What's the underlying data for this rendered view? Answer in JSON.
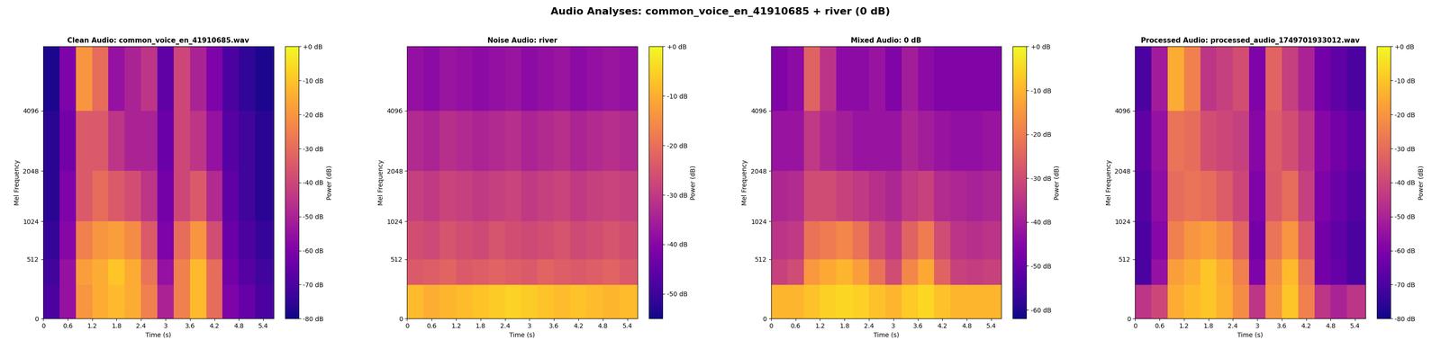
{
  "title": "Audio Analyses: common_voice_en_41910685 + river (0 dB)",
  "chart_data": [
    {
      "type": "heatmap",
      "title": "Clean Audio: common_voice_en_41910685.wav",
      "x_label": "Time (s)",
      "y_label": "Mel Frequency",
      "colorbar_label": "Power (dB)",
      "xlim": [
        0,
        5.65
      ],
      "xticks": [
        0,
        0.6,
        1.2,
        1.8,
        2.4,
        3,
        3.6,
        4.2,
        4.8,
        5.4
      ],
      "ylim": [
        0,
        8000
      ],
      "yticks": [
        0,
        512,
        1024,
        2048,
        4096
      ],
      "time_edges": [
        0,
        0.4,
        0.8,
        1.2,
        1.6,
        2,
        2.4,
        2.8,
        3.2,
        3.6,
        4,
        4.4,
        4.8,
        5.2,
        5.65
      ],
      "frequency_edges": [
        0,
        256,
        512,
        1024,
        2048,
        4096,
        8000
      ],
      "cells": [
        [
          -70,
          -55,
          -20,
          -15,
          -12,
          -15,
          -25,
          -50,
          -25,
          -12,
          -30,
          -60,
          -65,
          -70
        ],
        [
          -72,
          -55,
          -18,
          -15,
          -10,
          -15,
          -28,
          -55,
          -25,
          -12,
          -30,
          -62,
          -68,
          -72
        ],
        [
          -74,
          -58,
          -25,
          -20,
          -18,
          -22,
          -35,
          -60,
          -30,
          -20,
          -38,
          -64,
          -70,
          -74
        ],
        [
          -76,
          -60,
          -35,
          -30,
          -35,
          -38,
          -45,
          -62,
          -40,
          -35,
          -48,
          -66,
          -72,
          -76
        ],
        [
          -76,
          -62,
          -35,
          -35,
          -45,
          -50,
          -50,
          -64,
          -40,
          -45,
          -55,
          -68,
          -72,
          -76
        ],
        [
          -78,
          -60,
          -20,
          -30,
          -55,
          -50,
          -45,
          -66,
          -40,
          -50,
          -60,
          -70,
          -75,
          -78
        ]
      ],
      "colorbar_range": [
        -80,
        0
      ],
      "colorbar_ticks": [
        {
          "value": 0,
          "label": "+0 dB"
        },
        {
          "value": -10,
          "label": "-10 dB"
        },
        {
          "value": -20,
          "label": "-20 dB"
        },
        {
          "value": -30,
          "label": "-30 dB"
        },
        {
          "value": -40,
          "label": "-40 dB"
        },
        {
          "value": -50,
          "label": "-50 dB"
        },
        {
          "value": -60,
          "label": "-60 dB"
        },
        {
          "value": -70,
          "label": "-70 dB"
        },
        {
          "value": -80,
          "label": "-80 dB"
        }
      ]
    },
    {
      "type": "heatmap",
      "title": "Noise Audio: river",
      "x_label": "Time (s)",
      "y_label": "Mel Frequency",
      "colorbar_label": "Power (dB)",
      "xlim": [
        0,
        5.65
      ],
      "xticks": [
        0,
        0.6,
        1.2,
        1.8,
        2.4,
        3,
        3.6,
        4.2,
        4.8,
        5.4
      ],
      "ylim": [
        0,
        8000
      ],
      "yticks": [
        0,
        512,
        1024,
        2048,
        4096
      ],
      "time_edges": [
        0,
        0.4,
        0.8,
        1.2,
        1.6,
        2,
        2.4,
        2.8,
        3.2,
        3.6,
        4,
        4.4,
        4.8,
        5.2,
        5.65
      ],
      "frequency_edges": [
        0,
        256,
        512,
        1024,
        2048,
        4096,
        8000
      ],
      "cells": [
        [
          -8,
          -10,
          -9,
          -8,
          -7,
          -6,
          -5,
          -6,
          -7,
          -8,
          -7,
          -8,
          -9,
          -8
        ],
        [
          -24,
          -23,
          -22,
          -24,
          -23,
          -22,
          -23,
          -24,
          -22,
          -23,
          -24,
          -23,
          -22,
          -24
        ],
        [
          -26,
          -27,
          -25,
          -26,
          -27,
          -25,
          -26,
          -27,
          -26,
          -25,
          -27,
          -26,
          -25,
          -26
        ],
        [
          -29,
          -30,
          -28,
          -29,
          -30,
          -29,
          -28,
          -30,
          -29,
          -28,
          -30,
          -29,
          -28,
          -29
        ],
        [
          -33,
          -34,
          -32,
          -33,
          -34,
          -33,
          -32,
          -34,
          -33,
          -32,
          -34,
          -33,
          -32,
          -33
        ],
        [
          -38,
          -39,
          -37,
          -38,
          -39,
          -38,
          -37,
          -39,
          -38,
          -37,
          -39,
          -38,
          -37,
          -38
        ]
      ],
      "colorbar_range": [
        -55,
        0
      ],
      "colorbar_ticks": [
        {
          "value": 0,
          "label": "+0 dB"
        },
        {
          "value": -10,
          "label": "-10 dB"
        },
        {
          "value": -20,
          "label": "-20 dB"
        },
        {
          "value": -30,
          "label": "-30 dB"
        },
        {
          "value": -40,
          "label": "-40 dB"
        },
        {
          "value": -50,
          "label": "-50 dB"
        }
      ]
    },
    {
      "type": "heatmap",
      "title": "Mixed Audio: 0 dB",
      "x_label": "Time (s)",
      "y_label": "Mel Frequency",
      "colorbar_label": "Power (dB)",
      "xlim": [
        0,
        5.65
      ],
      "xticks": [
        0,
        0.6,
        1.2,
        1.8,
        2.4,
        3,
        3.6,
        4.2,
        4.8,
        5.4
      ],
      "ylim": [
        0,
        8000
      ],
      "yticks": [
        0,
        512,
        1024,
        2048,
        4096
      ],
      "time_edges": [
        0,
        0.4,
        0.8,
        1.2,
        1.6,
        2,
        2.4,
        2.8,
        3.2,
        3.6,
        4,
        4.4,
        4.8,
        5.2,
        5.65
      ],
      "frequency_edges": [
        0,
        256,
        512,
        1024,
        2048,
        4096,
        8000
      ],
      "cells": [
        [
          -10,
          -10,
          -8,
          -6,
          -5,
          -6,
          -8,
          -10,
          -7,
          -5,
          -8,
          -10,
          -10,
          -10
        ],
        [
          -32,
          -30,
          -15,
          -12,
          -10,
          -14,
          -22,
          -30,
          -18,
          -12,
          -25,
          -32,
          -33,
          -32
        ],
        [
          -35,
          -34,
          -22,
          -20,
          -18,
          -22,
          -30,
          -34,
          -25,
          -20,
          -30,
          -35,
          -36,
          -35
        ],
        [
          -38,
          -37,
          -30,
          -30,
          -32,
          -34,
          -36,
          -38,
          -34,
          -32,
          -37,
          -38,
          -39,
          -38
        ],
        [
          -42,
          -42,
          -34,
          -38,
          -40,
          -42,
          -42,
          -42,
          -38,
          -40,
          -42,
          -43,
          -43,
          -42
        ],
        [
          -46,
          -44,
          -25,
          -35,
          -44,
          -44,
          -42,
          -46,
          -40,
          -44,
          -46,
          -46,
          -46,
          -46
        ]
      ],
      "colorbar_range": [
        -62,
        0
      ],
      "colorbar_ticks": [
        {
          "value": 0,
          "label": "+0 dB"
        },
        {
          "value": -10,
          "label": "-10 dB"
        },
        {
          "value": -20,
          "label": "-20 dB"
        },
        {
          "value": -30,
          "label": "-30 dB"
        },
        {
          "value": -40,
          "label": "-40 dB"
        },
        {
          "value": -50,
          "label": "-50 dB"
        },
        {
          "value": -60,
          "label": "-60 dB"
        }
      ]
    },
    {
      "type": "heatmap",
      "title": "Processed Audio: processed_audio_1749701933012.wav",
      "x_label": "Time (s)",
      "y_label": "Mel Frequency",
      "colorbar_label": "Power (dB)",
      "xlim": [
        0,
        5.65
      ],
      "xticks": [
        0,
        0.6,
        1.2,
        1.8,
        2.4,
        3,
        3.6,
        4.2,
        4.8,
        5.4
      ],
      "ylim": [
        0,
        8000
      ],
      "yticks": [
        0,
        512,
        1024,
        2048,
        4096
      ],
      "time_edges": [
        0,
        0.4,
        0.8,
        1.2,
        1.6,
        2,
        2.4,
        2.8,
        3.2,
        3.6,
        4,
        4.4,
        4.8,
        5.2,
        5.65
      ],
      "frequency_edges": [
        0,
        256,
        512,
        1024,
        2048,
        4096,
        8000
      ],
      "cells": [
        [
          -45,
          -40,
          -15,
          -12,
          -10,
          -14,
          -22,
          -45,
          -20,
          -10,
          -25,
          -45,
          -50,
          -45
        ],
        [
          -70,
          -55,
          -18,
          -15,
          -10,
          -15,
          -25,
          -60,
          -22,
          -12,
          -28,
          -62,
          -65,
          -70
        ],
        [
          -70,
          -58,
          -25,
          -20,
          -18,
          -22,
          -32,
          -62,
          -28,
          -20,
          -35,
          -62,
          -66,
          -70
        ],
        [
          -68,
          -56,
          -30,
          -28,
          -30,
          -34,
          -40,
          -60,
          -35,
          -30,
          -42,
          -60,
          -64,
          -68
        ],
        [
          -66,
          -55,
          -28,
          -30,
          -38,
          -40,
          -42,
          -58,
          -34,
          -38,
          -45,
          -58,
          -62,
          -66
        ],
        [
          -70,
          -52,
          -15,
          -25,
          -45,
          -42,
          -38,
          -60,
          -32,
          -42,
          -50,
          -62,
          -66,
          -70
        ]
      ],
      "colorbar_range": [
        -80,
        0
      ],
      "colorbar_ticks": [
        {
          "value": 0,
          "label": "+0 dB"
        },
        {
          "value": -10,
          "label": "-10 dB"
        },
        {
          "value": -20,
          "label": "-20 dB"
        },
        {
          "value": -30,
          "label": "-30 dB"
        },
        {
          "value": -40,
          "label": "-40 dB"
        },
        {
          "value": -50,
          "label": "-50 dB"
        },
        {
          "value": -60,
          "label": "-60 dB"
        },
        {
          "value": -70,
          "label": "-70 dB"
        },
        {
          "value": -80,
          "label": "-80 dB"
        }
      ]
    }
  ]
}
